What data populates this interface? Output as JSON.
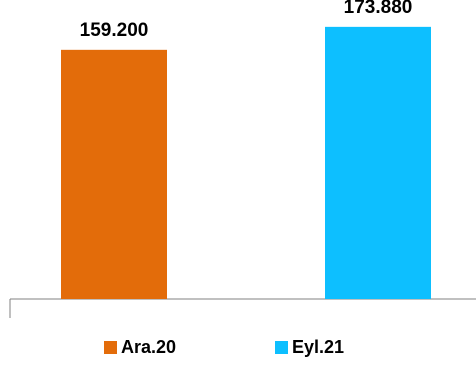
{
  "chart_data": {
    "type": "bar",
    "categories": [
      "Ara.20",
      "Eyl.21"
    ],
    "values": [
      159.2,
      173.88
    ],
    "value_labels": [
      "159.200",
      "173.880"
    ],
    "colors": [
      "#E36C0A",
      "#0DBFFF"
    ],
    "title": "",
    "xlabel": "",
    "ylabel": "",
    "ylim": [
      0,
      190.4
    ],
    "grid": false,
    "legend_position": "bottom"
  }
}
